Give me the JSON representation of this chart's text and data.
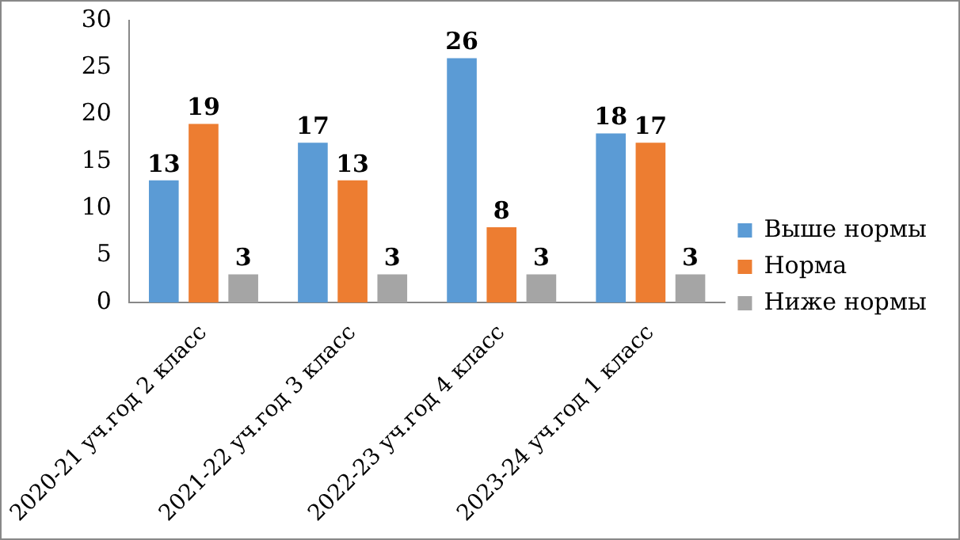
{
  "chart_data": {
    "type": "bar",
    "categories": [
      "2020-21 уч.год 2 класс",
      "2021-22 уч.год 3 класс",
      "2022-23 уч.год 4 класс",
      "2023-24 уч.год 1 класс"
    ],
    "series": [
      {
        "name": "Выше нормы",
        "color": "#5b9bd5",
        "values": [
          13,
          17,
          26,
          18
        ]
      },
      {
        "name": "Норма",
        "color": "#ed7d31",
        "values": [
          19,
          13,
          8,
          17
        ]
      },
      {
        "name": "Ниже нормы",
        "color": "#a5a5a5",
        "values": [
          3,
          3,
          3,
          3
        ]
      }
    ],
    "ylim": [
      0,
      30
    ],
    "yticks": [
      0,
      5,
      10,
      15,
      20,
      25,
      30
    ],
    "grid": false,
    "legend": "right",
    "data_labels": true
  }
}
